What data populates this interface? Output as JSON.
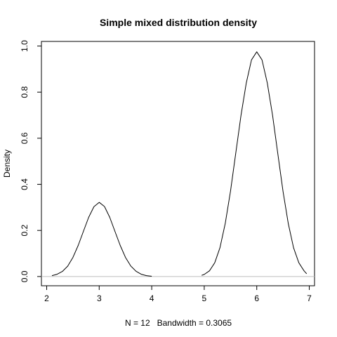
{
  "chart_data": {
    "type": "line",
    "title": "Simple mixed distribution density",
    "xlabel": "N = 12   Bandwidth = 0.3065",
    "ylabel": "Density",
    "xlim": [
      1.9,
      7.1
    ],
    "ylim": [
      -0.04,
      1.02
    ],
    "x_ticks": [
      2,
      3,
      4,
      5,
      6,
      7
    ],
    "x_tick_labels": [
      "2",
      "3",
      "4",
      "5",
      "6",
      "7"
    ],
    "y_ticks": [
      0.0,
      0.2,
      0.4,
      0.6,
      0.8,
      1.0
    ],
    "y_tick_labels": [
      "0.0",
      "0.2",
      "0.4",
      "0.6",
      "0.8",
      "1.0"
    ],
    "grid": false,
    "baseline": 0,
    "baseline_color": "#bebebe",
    "line_color": "#000000",
    "series": [
      {
        "x": [
          2.1,
          2.2,
          2.3,
          2.4,
          2.5,
          2.6,
          2.7,
          2.8,
          2.9,
          3.0,
          3.1,
          3.2,
          3.3,
          3.4,
          3.5,
          3.6,
          3.7,
          3.8,
          3.9,
          4.0
        ],
        "values": [
          0.004,
          0.01,
          0.022,
          0.045,
          0.083,
          0.135,
          0.196,
          0.257,
          0.303,
          0.322,
          0.304,
          0.257,
          0.196,
          0.135,
          0.083,
          0.046,
          0.023,
          0.01,
          0.004,
          0.001
        ]
      },
      {
        "x": [
          4.95,
          5.0,
          5.1,
          5.2,
          5.3,
          5.4,
          5.5,
          5.6,
          5.7,
          5.8,
          5.9,
          6.0,
          6.1,
          6.2,
          6.3,
          6.4,
          6.5,
          6.6,
          6.7,
          6.8,
          6.9,
          6.95
        ],
        "values": [
          0.005,
          0.009,
          0.025,
          0.06,
          0.125,
          0.23,
          0.37,
          0.535,
          0.7,
          0.84,
          0.94,
          0.975,
          0.94,
          0.84,
          0.7,
          0.535,
          0.37,
          0.23,
          0.125,
          0.06,
          0.025,
          0.012
        ]
      }
    ]
  }
}
